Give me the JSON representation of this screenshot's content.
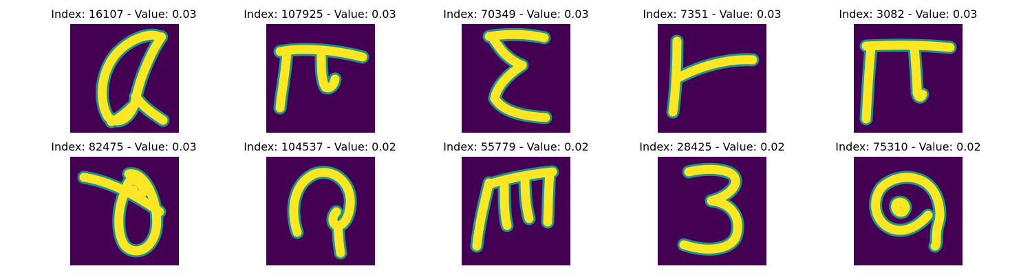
{
  "figure": {
    "background_color": "#440154",
    "stroke_color": "#fde725",
    "edge_color": "#21918c",
    "panels": [
      {
        "label": "Index: 16107 - Value: 0.03",
        "glyph": "alpha-loop"
      },
      {
        "label": "Index: 107925 - Value: 0.03",
        "glyph": "pi-hook"
      },
      {
        "label": "Index: 70349 - Value: 0.03",
        "glyph": "epsilon"
      },
      {
        "label": "Index: 7351 - Value: 0.03",
        "glyph": "left-tack"
      },
      {
        "label": "Index: 3082 - Value: 0.03",
        "glyph": "pi"
      },
      {
        "label": "Index: 82475 - Value: 0.03",
        "glyph": "theta-slash"
      },
      {
        "label": "Index: 104537 - Value: 0.02",
        "glyph": "hooked-loop"
      },
      {
        "label": "Index: 55779 - Value: 0.02",
        "glyph": "m-shape"
      },
      {
        "label": "Index: 28425 - Value: 0.02",
        "glyph": "three"
      },
      {
        "label": "Index: 75310 - Value: 0.02",
        "glyph": "blob-loop"
      }
    ]
  }
}
